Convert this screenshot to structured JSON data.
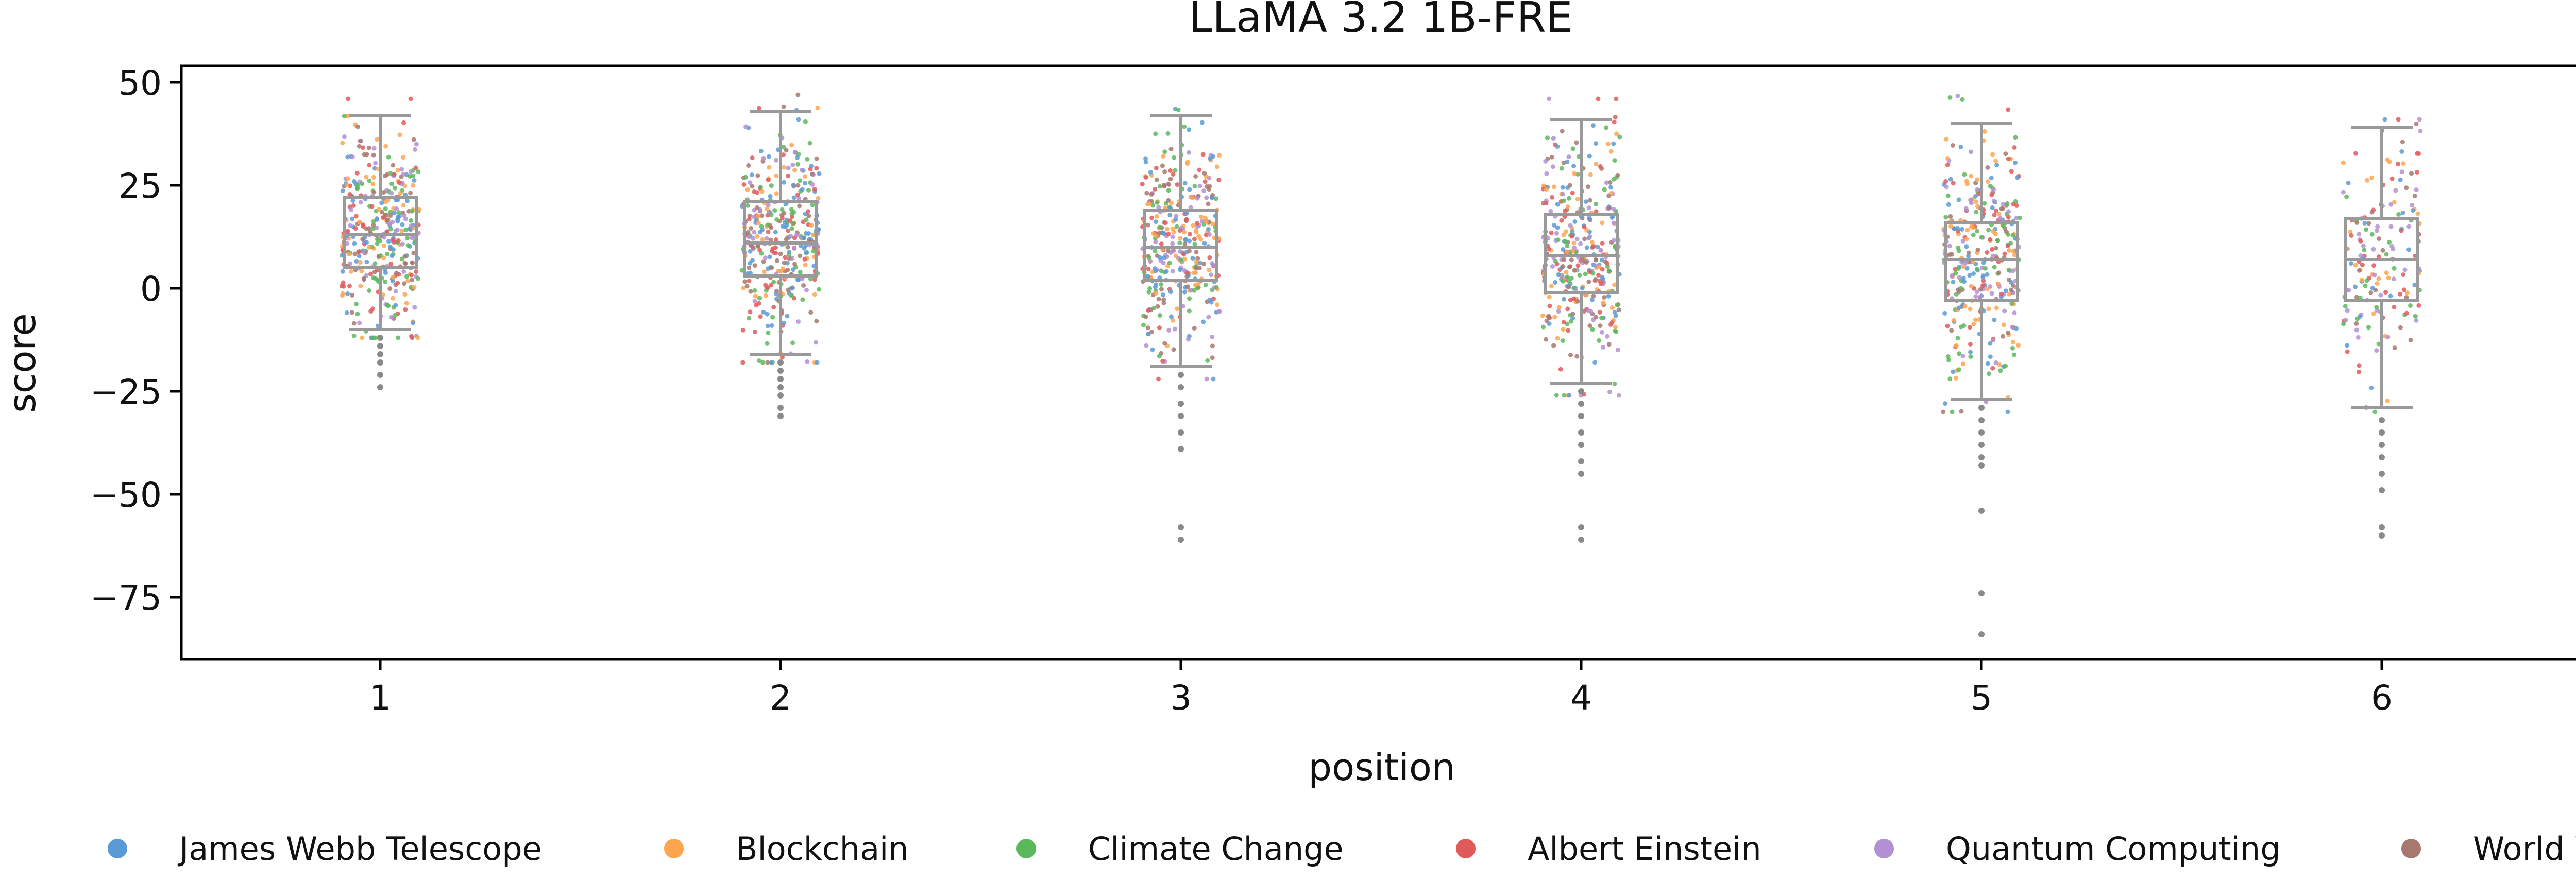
{
  "chart_data": {
    "type": "box",
    "title": "LLaMA 3.2 1B-FRE",
    "xlabel": "position",
    "ylabel": "score",
    "ylim": [
      -90,
      54
    ],
    "yticks": [
      50,
      25,
      0,
      -25,
      -50,
      -75
    ],
    "grid": false,
    "legend_position": "bottom",
    "categories": [
      "1",
      "2",
      "3",
      "4",
      "5",
      "6"
    ],
    "boxes": [
      {
        "position": "1",
        "whisker_low": -10,
        "q1": 5,
        "median": 13,
        "q3": 22,
        "whisker_high": 42,
        "points_range": [
          -12,
          46
        ],
        "n_points": 380,
        "outliers": [
          -12,
          -14,
          -16,
          -18,
          -21,
          -24
        ]
      },
      {
        "position": "2",
        "whisker_low": -16,
        "q1": 3,
        "median": 11,
        "q3": 21,
        "whisker_high": 43,
        "points_range": [
          -18,
          47
        ],
        "n_points": 380,
        "outliers": [
          -18,
          -20,
          -22,
          -24,
          -26,
          -29,
          -31
        ]
      },
      {
        "position": "3",
        "whisker_low": -19,
        "q1": 2,
        "median": 10,
        "q3": 19,
        "whisker_high": 42,
        "points_range": [
          -22,
          44
        ],
        "n_points": 360,
        "outliers": [
          -21,
          -24,
          -28,
          -31,
          -35,
          -39,
          -58,
          -61
        ]
      },
      {
        "position": "4",
        "whisker_low": -23,
        "q1": -1,
        "median": 8,
        "q3": 18,
        "whisker_high": 41,
        "points_range": [
          -26,
          46
        ],
        "n_points": 360,
        "outliers": [
          -25,
          -28,
          -31,
          -35,
          -38,
          -42,
          -45,
          -58,
          -61
        ]
      },
      {
        "position": "5",
        "whisker_low": -27,
        "q1": -3,
        "median": 7,
        "q3": 16,
        "whisker_high": 40,
        "points_range": [
          -30,
          47
        ],
        "n_points": 340,
        "outliers": [
          -29,
          -32,
          -35,
          -38,
          -41,
          -43,
          -54,
          -74,
          -84
        ]
      },
      {
        "position": "6",
        "whisker_low": -29,
        "q1": -3,
        "median": 7,
        "q3": 17,
        "whisker_high": 39,
        "points_range": [
          -30,
          41
        ],
        "n_points": 170,
        "outliers": [
          -32,
          -35,
          -38,
          -41,
          -45,
          -49,
          -58,
          -60
        ]
      }
    ],
    "series": [
      {
        "name": "James Webb Telescope",
        "color": "#5b9bd5"
      },
      {
        "name": "Blockchain",
        "color": "#ffa54f"
      },
      {
        "name": "Climate Change",
        "color": "#5cb85c"
      },
      {
        "name": "Albert Einstein",
        "color": "#e05a5a"
      },
      {
        "name": "Quantum Computing",
        "color": "#b38fd4"
      },
      {
        "name": "World War II",
        "color": "#a8786e"
      }
    ],
    "box_color": "#9a9a9a",
    "outlier_color": "#8a8a8a"
  }
}
